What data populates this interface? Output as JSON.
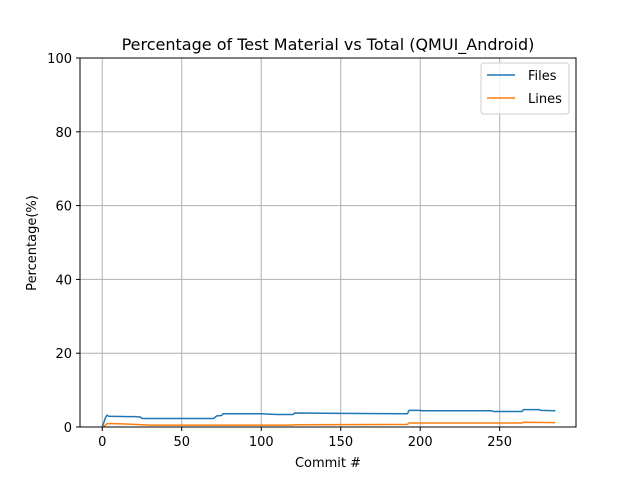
{
  "chart_data": {
    "type": "line",
    "title": "Percentage of Test Material vs Total (QMUI_Android)",
    "xlabel": "Commit #",
    "ylabel": "Percentage(%)",
    "xlim": [
      -14,
      298
    ],
    "ylim": [
      0,
      100
    ],
    "xticks": [
      0,
      50,
      100,
      150,
      200,
      250
    ],
    "yticks": [
      0,
      20,
      40,
      60,
      80,
      100
    ],
    "grid": true,
    "legend_position": "top-right",
    "series": [
      {
        "name": "Files",
        "color": "#1f77b4",
        "points": [
          [
            0,
            0
          ],
          [
            2,
            2.5
          ],
          [
            3,
            3.2
          ],
          [
            4,
            2.9
          ],
          [
            20,
            2.8
          ],
          [
            24,
            2.7
          ],
          [
            25,
            2.3
          ],
          [
            70,
            2.3
          ],
          [
            72,
            3.0
          ],
          [
            75,
            3.1
          ],
          [
            76,
            3.6
          ],
          [
            100,
            3.6
          ],
          [
            110,
            3.4
          ],
          [
            120,
            3.4
          ],
          [
            121,
            3.8
          ],
          [
            150,
            3.7
          ],
          [
            192,
            3.6
          ],
          [
            193,
            4.5
          ],
          [
            200,
            4.5
          ],
          [
            201,
            4.4
          ],
          [
            245,
            4.4
          ],
          [
            246,
            4.2
          ],
          [
            264,
            4.2
          ],
          [
            265,
            4.7
          ],
          [
            275,
            4.7
          ],
          [
            276,
            4.5
          ],
          [
            285,
            4.4
          ]
        ]
      },
      {
        "name": "Lines",
        "color": "#ff7f0e",
        "points": [
          [
            0,
            0
          ],
          [
            2,
            0.5
          ],
          [
            3,
            0.9
          ],
          [
            6,
            0.9
          ],
          [
            15,
            0.8
          ],
          [
            20,
            0.7
          ],
          [
            30,
            0.5
          ],
          [
            120,
            0.5
          ],
          [
            121,
            0.6
          ],
          [
            192,
            0.7
          ],
          [
            193,
            1.1
          ],
          [
            200,
            1.1
          ],
          [
            264,
            1.1
          ],
          [
            265,
            1.3
          ],
          [
            285,
            1.2
          ]
        ]
      }
    ]
  }
}
